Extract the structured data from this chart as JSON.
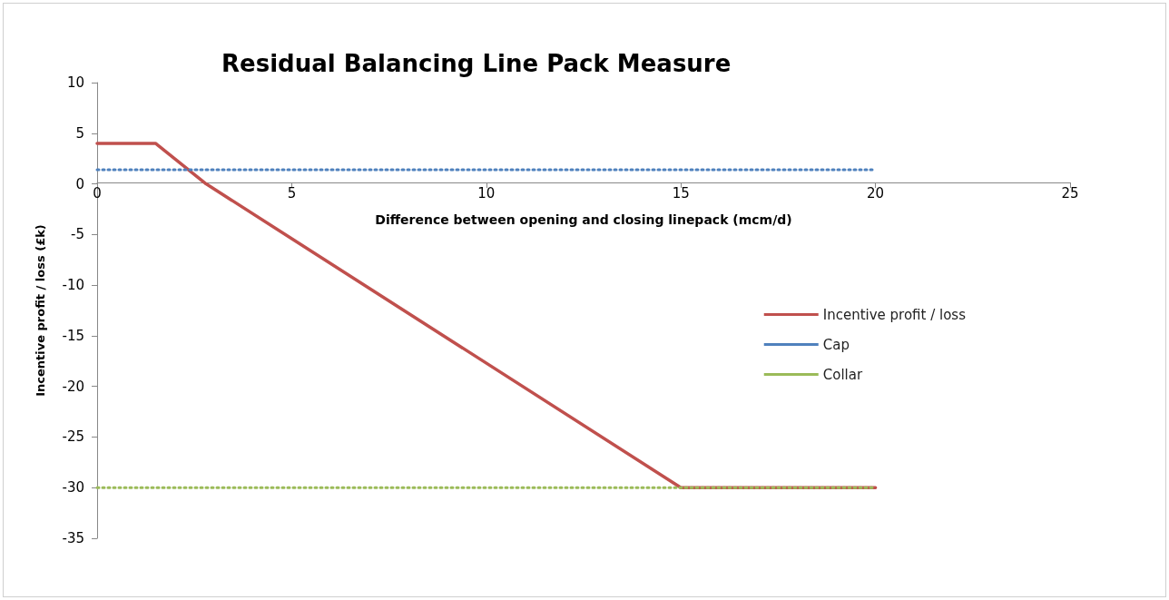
{
  "chart_data": {
    "type": "line",
    "title": "Residual Balancing Line Pack Measure",
    "xlabel": "Difference between opening and closing linepack (mcm/d)",
    "ylabel": "Incentive profit / loss (£k)",
    "xlim": [
      0,
      25
    ],
    "xticks": [
      0,
      5,
      10,
      15,
      20,
      25
    ],
    "ylim": [
      -35,
      10
    ],
    "yticks": [
      -35,
      -30,
      -25,
      -20,
      -15,
      -10,
      -5,
      0,
      5,
      10
    ],
    "grid": false,
    "legend": "right",
    "marker": "none",
    "series": [
      {
        "name": "Incentive profit / loss",
        "color": "#c0504d",
        "line_style": "solid",
        "x": [
          0,
          1.5,
          2.8,
          15,
          20
        ],
        "values": [
          4,
          4,
          0,
          -30,
          -30
        ]
      },
      {
        "name": "Cap",
        "color": "#4f81bd",
        "line_style": "dotted",
        "x": [
          0,
          20
        ],
        "values": [
          1.4,
          1.4
        ]
      },
      {
        "name": "Collar",
        "color": "#9bbb59",
        "line_style": "dotted",
        "x": [
          0,
          20
        ],
        "values": [
          -30,
          -30
        ]
      }
    ]
  }
}
